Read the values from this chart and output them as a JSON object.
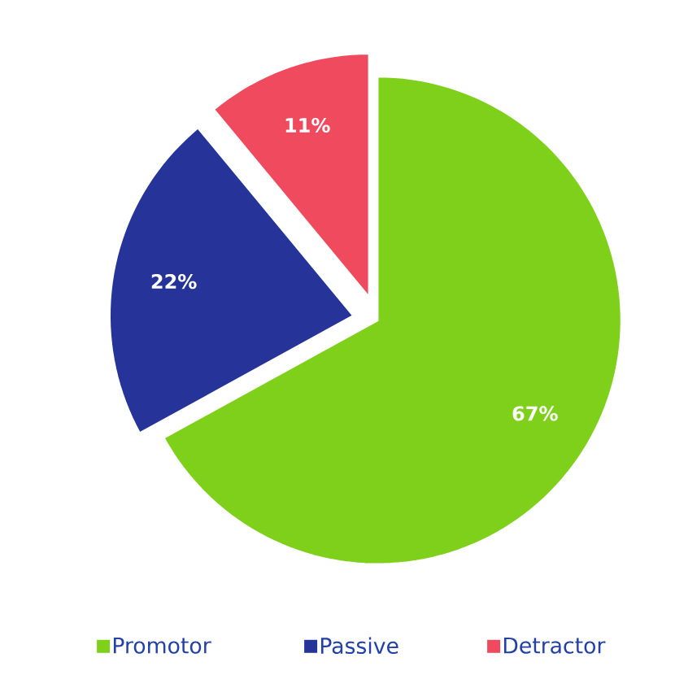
{
  "chart_data": {
    "type": "pie",
    "categories": [
      "Promotor",
      "Passive",
      "Detractor"
    ],
    "values": [
      67,
      22,
      11
    ],
    "colors": [
      "#7ed01a",
      "#26349a",
      "#f04a5e"
    ],
    "value_labels": [
      "67%",
      "22%",
      "11%"
    ],
    "legend": "bottom"
  }
}
